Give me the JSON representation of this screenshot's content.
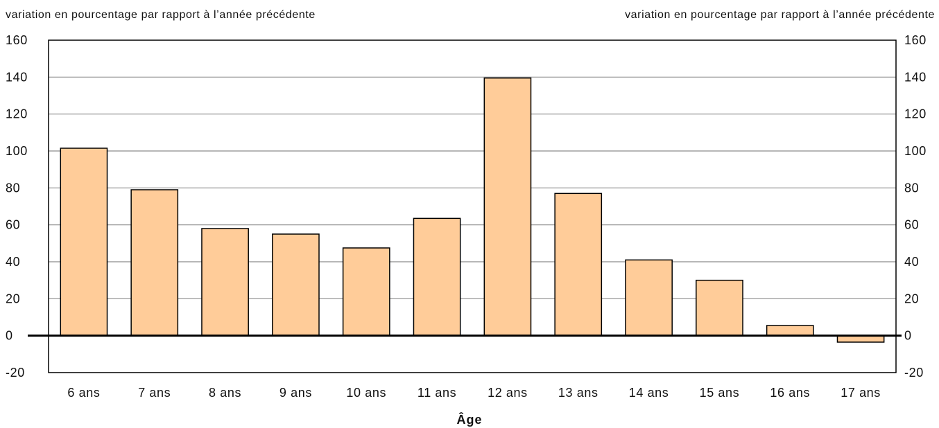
{
  "chart_data": {
    "type": "bar",
    "y_unit_left": "variation en pourcentage par rapport à l’année précédente",
    "y_unit_right": "variation en pourcentage par rapport à l’année précédente",
    "xlabel": "Âge",
    "categories": [
      "6 ans",
      "7 ans",
      "8 ans",
      "9 ans",
      "10 ans",
      "11 ans",
      "12 ans",
      "13 ans",
      "14 ans",
      "15 ans",
      "16 ans",
      "17 ans"
    ],
    "values": [
      101.5,
      79,
      58,
      55,
      47.5,
      63.5,
      139.5,
      77,
      41,
      30,
      5.5,
      -3.5
    ],
    "ylim": [
      -20,
      160
    ],
    "yticks": [
      "-20",
      "0",
      "20",
      "40",
      "60",
      "80",
      "100",
      "120",
      "140",
      "160"
    ],
    "grid": true,
    "bar_color": "#FFCC99"
  }
}
